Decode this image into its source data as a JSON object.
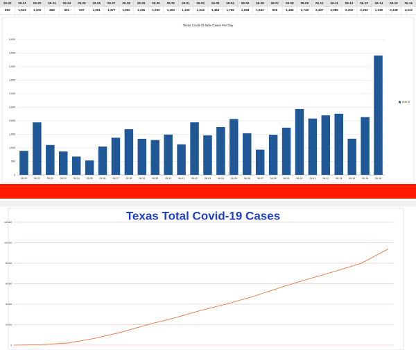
{
  "table": {
    "headers": [
      "05-20",
      "05-21",
      "05-22",
      "05-23",
      "05-24",
      "05-25",
      "05-26",
      "05-27",
      "05-28",
      "05-29",
      "05-30",
      "05-31",
      "06-01",
      "06-02",
      "06-03",
      "06-04",
      "06-05",
      "06-06",
      "06-07",
      "06-08",
      "06-09",
      "06-10",
      "06-11",
      "06-12",
      "06-13",
      "06-14",
      "06-15",
      "06-16"
    ],
    "values": [
      "892",
      "1,943",
      "1,109",
      "868",
      "681",
      "537",
      "1,051",
      "1,377",
      "1,690",
      "1,336",
      "1,290",
      "1,493",
      "1,130",
      "1,944",
      "1,464",
      "1,769",
      "2,068",
      "1,542",
      "935",
      "1,486",
      "1,748",
      "2,437",
      "2,085",
      "2,202",
      "2,262",
      "1,339",
      "2,138",
      "4,413"
    ]
  },
  "chart_data": [
    {
      "type": "bar",
      "title": "Texas Covid-19 New Cases Per Day",
      "categories": [
        "05-20",
        "05-21",
        "05-22",
        "05-23",
        "05-24",
        "05-25",
        "05-26",
        "05-27",
        "05-28",
        "05-29",
        "05-30",
        "05-31",
        "06-01",
        "06-02",
        "06-03",
        "06-04",
        "06-05",
        "06-06",
        "06-07",
        "06-08",
        "06-09",
        "06-10",
        "06-11",
        "06-12",
        "06-13",
        "06-14",
        "06-15",
        "06-16"
      ],
      "series": [
        {
          "name": "Row 37",
          "color": "#1f5797",
          "values": [
            892,
            1943,
            1109,
            868,
            681,
            537,
            1051,
            1377,
            1690,
            1336,
            1290,
            1493,
            1130,
            1944,
            1464,
            1769,
            2068,
            1542,
            935,
            1486,
            1748,
            2437,
            2085,
            2202,
            2262,
            1339,
            2138,
            4413
          ]
        }
      ],
      "ylim": [
        0,
        5000
      ],
      "yticks": [
        0,
        500,
        {
          "value": 1000,
          "label": "1,000"
        },
        {
          "value": 1500,
          "label": "1,500"
        },
        {
          "value": 2000,
          "label": "2,000"
        },
        {
          "value": 2500,
          "label": "2,500"
        },
        {
          "value": 3000,
          "label": "3,000"
        },
        {
          "value": 3500,
          "label": "3,500"
        },
        {
          "value": 4000,
          "label": "4,000"
        },
        {
          "value": 4500,
          "label": "4,500"
        },
        {
          "value": 5000,
          "label": "5,000"
        }
      ],
      "grid": true,
      "legend": "right"
    },
    {
      "type": "line",
      "title": "Texas Total Covid-19 Cases",
      "series": [
        {
          "color": "#e8652a",
          "values": [
            0,
            500,
            2000,
            6500,
            12500,
            20000,
            26500,
            34000,
            40500,
            48000,
            56500,
            64500,
            72000,
            80000,
            94000
          ]
        }
      ],
      "ylim": [
        0,
        120000
      ],
      "yticks": [
        0,
        {
          "value": 20000,
          "label": "20,000"
        },
        {
          "value": 40000,
          "label": "40,000"
        },
        {
          "value": 60000,
          "label": "60,000"
        },
        {
          "value": 80000,
          "label": "80,000"
        },
        {
          "value": 100000,
          "label": "100,000"
        },
        {
          "value": 120000,
          "label": "120,000"
        }
      ],
      "grid": true
    }
  ]
}
